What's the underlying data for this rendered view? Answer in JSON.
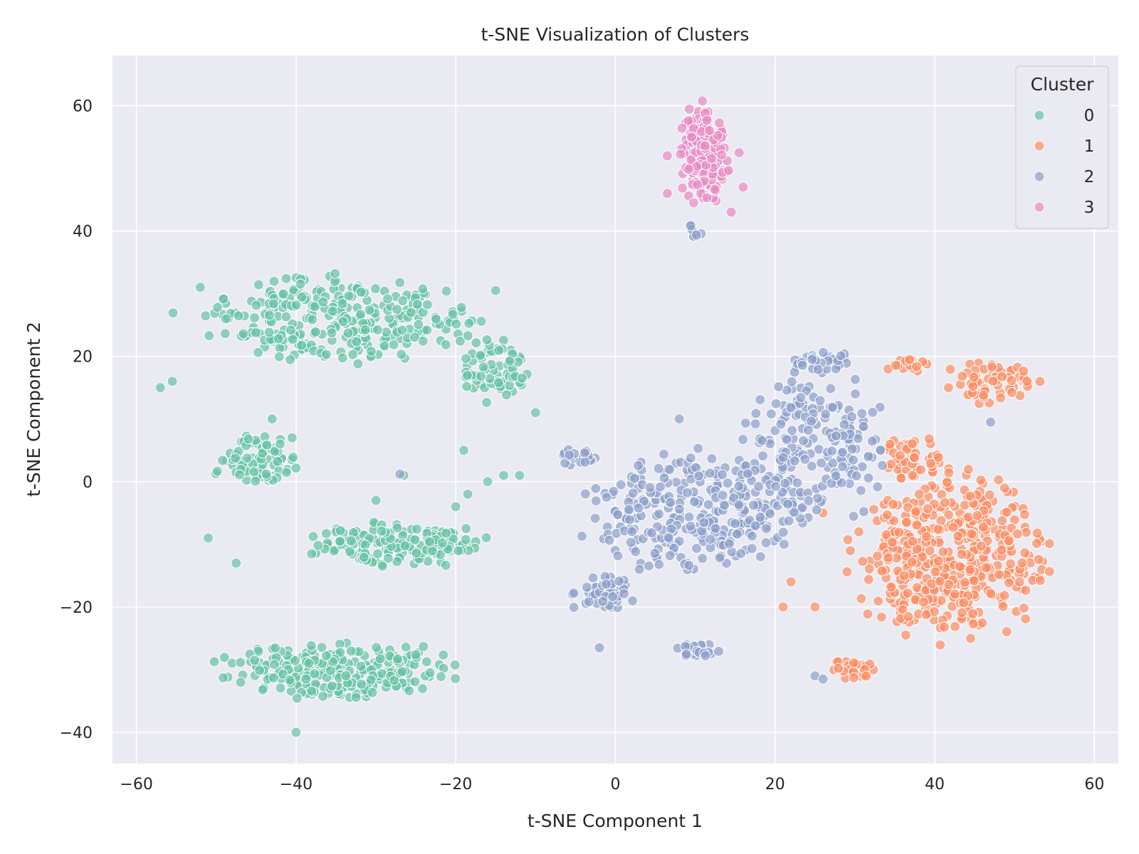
{
  "chart_data": {
    "type": "scatter",
    "title": "t-SNE Visualization of Clusters",
    "xlabel": "t-SNE Component 1",
    "ylabel": "t-SNE Component 2",
    "xlim": [
      -63,
      63
    ],
    "ylim": [
      -45,
      68
    ],
    "xticks": [
      -60,
      -40,
      -20,
      0,
      20,
      40,
      60
    ],
    "yticks": [
      -40,
      -20,
      0,
      20,
      40,
      60
    ],
    "xtick_labels": [
      "−60",
      "−40",
      "−20",
      "0",
      "20",
      "40",
      "60"
    ],
    "ytick_labels": [
      "−40",
      "−20",
      "0",
      "20",
      "40",
      "60"
    ],
    "grid": true,
    "legend": {
      "title": "Cluster",
      "placement": "top-right"
    },
    "colors": {
      "0": "#66c2a5",
      "1": "#fc8d62",
      "2": "#8da0cb",
      "3": "#e78ac3",
      "background": "#eaeaf2",
      "grid": "#ffffff"
    },
    "marker_alpha": 0.7,
    "series": [
      {
        "name": "0",
        "regions": [
          {
            "cx": -35,
            "cy": 26,
            "rx": 21,
            "ry": 8,
            "n": 300
          },
          {
            "cx": -15,
            "cy": 18,
            "rx": 5,
            "ry": 6,
            "n": 70
          },
          {
            "cx": -45,
            "cy": 3,
            "rx": 6,
            "ry": 5,
            "n": 80
          },
          {
            "cx": -27,
            "cy": -10,
            "rx": 13,
            "ry": 4,
            "n": 160
          },
          {
            "cx": -35,
            "cy": -30,
            "rx": 17,
            "ry": 5,
            "n": 250
          }
        ],
        "points": [
          [
            -57,
            15
          ],
          [
            -55.5,
            16
          ],
          [
            -52,
            31
          ],
          [
            -51,
            -9
          ],
          [
            -47.5,
            -13
          ],
          [
            -43,
            10
          ],
          [
            -30,
            -3
          ],
          [
            -26.5,
            1
          ],
          [
            -20,
            -4
          ],
          [
            -19,
            5
          ],
          [
            -18.5,
            -2
          ],
          [
            -16,
            0
          ],
          [
            -14,
            1
          ],
          [
            -12,
            1
          ],
          [
            -15,
            30.5
          ],
          [
            -40,
            -40
          ],
          [
            -10,
            11
          ],
          [
            -42,
            6
          ],
          [
            -40.5,
            7
          ]
        ]
      },
      {
        "name": "1",
        "regions": [
          {
            "cx": 42,
            "cy": -12,
            "rx": 14,
            "ry": 15,
            "n": 450
          },
          {
            "cx": 37,
            "cy": 4,
            "rx": 5,
            "ry": 4,
            "n": 50
          },
          {
            "cx": 30,
            "cy": -30,
            "rx": 4,
            "ry": 2,
            "n": 30
          },
          {
            "cx": 47,
            "cy": 16,
            "rx": 7,
            "ry": 4,
            "n": 60
          },
          {
            "cx": 36,
            "cy": 18.5,
            "rx": 4,
            "ry": 1.5,
            "n": 15
          }
        ],
        "points": [
          [
            21,
            -20
          ],
          [
            25,
            -20
          ],
          [
            26,
            -5
          ],
          [
            30.5,
            -8
          ],
          [
            22,
            -16
          ]
        ]
      },
      {
        "name": "2",
        "regions": [
          {
            "cx": 10,
            "cy": -5,
            "rx": 16,
            "ry": 11,
            "n": 300
          },
          {
            "cx": 25,
            "cy": 5,
            "rx": 10,
            "ry": 14,
            "n": 200
          },
          {
            "cx": -2,
            "cy": -18,
            "rx": 5,
            "ry": 3.5,
            "n": 50
          },
          {
            "cx": 10,
            "cy": -27,
            "rx": 4,
            "ry": 1.5,
            "n": 30
          },
          {
            "cx": -5,
            "cy": 4,
            "rx": 3,
            "ry": 1.5,
            "n": 20
          },
          {
            "cx": 10,
            "cy": 40,
            "rx": 1.2,
            "ry": 1.5,
            "n": 8
          },
          {
            "cx": 26,
            "cy": 19,
            "rx": 6,
            "ry": 2,
            "n": 30
          }
        ],
        "points": [
          [
            -27,
            1.2
          ],
          [
            -2,
            -26.5
          ],
          [
            3,
            -14
          ],
          [
            8,
            10
          ],
          [
            25,
            -31
          ],
          [
            26,
            -31.5
          ],
          [
            47,
            9.5
          ]
        ]
      },
      {
        "name": "3",
        "regions": [
          {
            "cx": 11,
            "cy": 52,
            "rx": 3.6,
            "ry": 9.5,
            "n": 160
          }
        ],
        "points": [
          [
            6.5,
            46
          ],
          [
            6.5,
            52
          ],
          [
            15.5,
            52.5
          ],
          [
            16,
            47
          ],
          [
            14.5,
            43
          ]
        ]
      }
    ]
  }
}
